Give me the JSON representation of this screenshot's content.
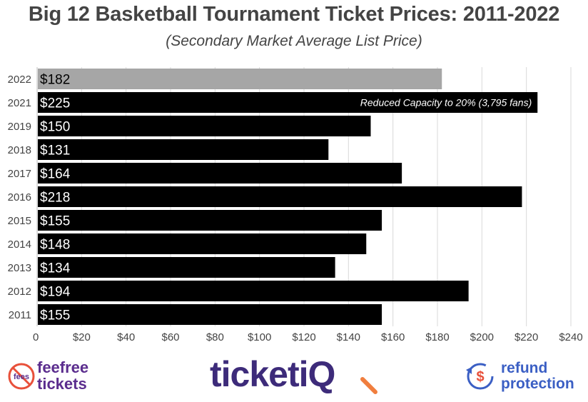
{
  "chart_data": {
    "type": "bar",
    "orientation": "horizontal",
    "title": "Big 12 Basketball Tournament Ticket Prices: 2011-2022",
    "subtitle": "(Secondary Market Average List Price)",
    "categories": [
      "2022",
      "2021",
      "2019",
      "2018",
      "2017",
      "2016",
      "2015",
      "2014",
      "2013",
      "2012",
      "2011"
    ],
    "values": [
      182,
      225,
      150,
      131,
      164,
      218,
      155,
      148,
      134,
      194,
      155
    ],
    "value_labels": [
      "$182",
      "$225",
      "$150",
      "$131",
      "$164",
      "$218",
      "$155",
      "$148",
      "$134",
      "$194",
      "$155"
    ],
    "bar_colors": [
      "#a6a6a6",
      "#000000",
      "#000000",
      "#000000",
      "#000000",
      "#000000",
      "#000000",
      "#000000",
      "#000000",
      "#000000",
      "#000000"
    ],
    "value_label_colors": [
      "#000000",
      "#ffffff",
      "#ffffff",
      "#ffffff",
      "#ffffff",
      "#ffffff",
      "#ffffff",
      "#ffffff",
      "#ffffff",
      "#ffffff",
      "#ffffff"
    ],
    "xlim": [
      0,
      240
    ],
    "xticks": [
      "0",
      "$20",
      "$40",
      "$60",
      "$80",
      "$100",
      "$120",
      "$140",
      "$160",
      "$180",
      "$200",
      "$220",
      "$240"
    ],
    "grid": true,
    "annotation": {
      "category": "2021",
      "text": "Reduced Capacity to 20% (3,795 fans)"
    }
  },
  "logos": {
    "feefree": {
      "badge": "fees",
      "line1": "feefree",
      "line2": "tickets"
    },
    "ticketiq": {
      "text": "ticketiQ"
    },
    "refund": {
      "line1": "refund",
      "line2": "protection"
    }
  },
  "colors": {
    "title": "#444444",
    "feefree": "#5b2d8e",
    "ticketiq": "#3d2b7a",
    "ticketiq_accent": "#f07e3e",
    "refund": "#3b5fc4"
  }
}
